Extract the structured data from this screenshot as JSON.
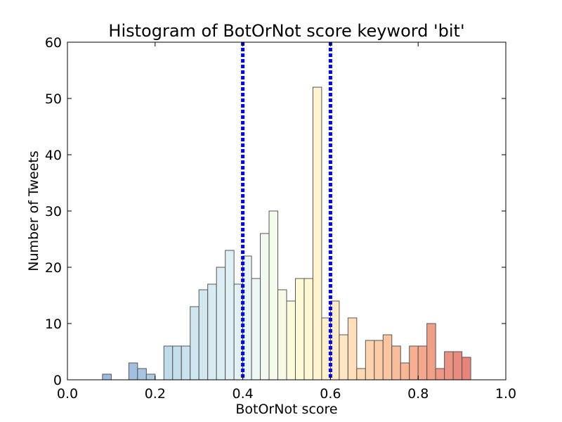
{
  "chart_data": {
    "type": "bar",
    "title": "Histogram of BotOrNot score keyword 'bit'",
    "xlabel": "BotOrNot score",
    "ylabel": "Number of Tweets",
    "xlim": [
      0.0,
      1.0
    ],
    "ylim": [
      0,
      60
    ],
    "x_ticks": [
      0.0,
      0.2,
      0.4,
      0.6,
      0.8,
      1.0
    ],
    "x_tick_labels": [
      "0.0",
      "0.2",
      "0.4",
      "0.6",
      "0.8",
      "1.0"
    ],
    "y_ticks": [
      0,
      10,
      20,
      30,
      40,
      50,
      60
    ],
    "y_tick_labels": [
      "0",
      "10",
      "20",
      "30",
      "40",
      "50",
      "60"
    ],
    "grid": false,
    "legend": false,
    "bin_width": 0.02,
    "bins": [
      {
        "x0": 0.08,
        "count": 1,
        "color": "#91b2d9"
      },
      {
        "x0": 0.14,
        "count": 3,
        "color": "#97b8da"
      },
      {
        "x0": 0.16,
        "count": 2,
        "color": "#9dbedd"
      },
      {
        "x0": 0.18,
        "count": 1,
        "color": "#a4c4de"
      },
      {
        "x0": 0.22,
        "count": 6,
        "color": "#b6d7e8"
      },
      {
        "x0": 0.24,
        "count": 6,
        "color": "#bddbea"
      },
      {
        "x0": 0.26,
        "count": 6,
        "color": "#c3dfec"
      },
      {
        "x0": 0.28,
        "count": 13,
        "color": "#c8e3ee"
      },
      {
        "x0": 0.3,
        "count": 16,
        "color": "#cde6f0"
      },
      {
        "x0": 0.32,
        "count": 17,
        "color": "#d2e9f1"
      },
      {
        "x0": 0.34,
        "count": 20,
        "color": "#d7ecf3"
      },
      {
        "x0": 0.36,
        "count": 23,
        "color": "#dbeef4"
      },
      {
        "x0": 0.38,
        "count": 17,
        "color": "#dff1f5"
      },
      {
        "x0": 0.4,
        "count": 22,
        "color": "#e4f3f5"
      },
      {
        "x0": 0.42,
        "count": 18,
        "color": "#ebf6f3"
      },
      {
        "x0": 0.44,
        "count": 26,
        "color": "#f0f8ee"
      },
      {
        "x0": 0.46,
        "count": 30,
        "color": "#f4f9e9"
      },
      {
        "x0": 0.48,
        "count": 16,
        "color": "#f8fae1"
      },
      {
        "x0": 0.5,
        "count": 14,
        "color": "#fcfbd7"
      },
      {
        "x0": 0.52,
        "count": 18,
        "color": "#fefad0"
      },
      {
        "x0": 0.54,
        "count": 18,
        "color": "#fff7cc"
      },
      {
        "x0": 0.56,
        "count": 52,
        "color": "#fff3ca"
      },
      {
        "x0": 0.58,
        "count": 11,
        "color": "#ffefc6"
      },
      {
        "x0": 0.6,
        "count": 14,
        "color": "#ffe9c0"
      },
      {
        "x0": 0.62,
        "count": 8,
        "color": "#fee3b9"
      },
      {
        "x0": 0.64,
        "count": 11,
        "color": "#fedcb1"
      },
      {
        "x0": 0.66,
        "count": 2,
        "color": "#fed5aa"
      },
      {
        "x0": 0.68,
        "count": 7,
        "color": "#fdcea3"
      },
      {
        "x0": 0.7,
        "count": 7,
        "color": "#fcc69c"
      },
      {
        "x0": 0.72,
        "count": 8,
        "color": "#fbbe96"
      },
      {
        "x0": 0.74,
        "count": 6,
        "color": "#fab690"
      },
      {
        "x0": 0.76,
        "count": 3,
        "color": "#f8ae8a"
      },
      {
        "x0": 0.78,
        "count": 6,
        "color": "#f6a585"
      },
      {
        "x0": 0.8,
        "count": 6,
        "color": "#f49d80"
      },
      {
        "x0": 0.82,
        "count": 10,
        "color": "#f1957b"
      },
      {
        "x0": 0.84,
        "count": 2,
        "color": "#ee8d77"
      },
      {
        "x0": 0.86,
        "count": 5,
        "color": "#eb8573"
      },
      {
        "x0": 0.88,
        "count": 5,
        "color": "#e87e70"
      },
      {
        "x0": 0.9,
        "count": 4,
        "color": "#e5776d"
      }
    ],
    "reference_lines": [
      {
        "x": 0.4,
        "color": "#0000ff",
        "style": "dotted"
      },
      {
        "x": 0.6,
        "color": "#0000ff",
        "style": "dotted"
      }
    ]
  }
}
